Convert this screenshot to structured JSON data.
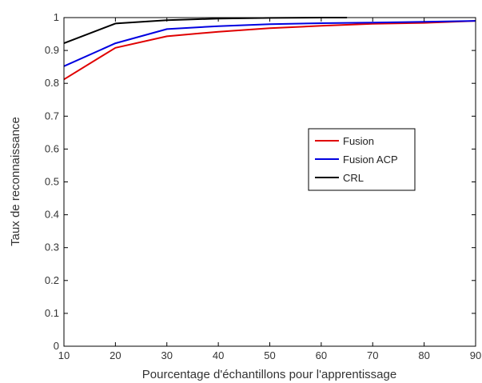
{
  "chart_data": {
    "type": "line",
    "title": "",
    "xlabel": "Pourcentage d'échantillons pour l'apprentissage",
    "ylabel": "Taux de reconnaissance",
    "xlim": [
      10,
      90
    ],
    "ylim": [
      0,
      1
    ],
    "x_ticks": [
      "10",
      "20",
      "30",
      "40",
      "50",
      "60",
      "70",
      "80",
      "90"
    ],
    "y_ticks": [
      "0",
      "0.1",
      "0.2",
      "0.3",
      "0.4",
      "0.5",
      "0.6",
      "0.7",
      "0.8",
      "0.9",
      "1"
    ],
    "grid": false,
    "legend_position": "right-middle",
    "series": [
      {
        "name": "Fusion",
        "color": "#e00000",
        "x": [
          10,
          20,
          30,
          40,
          50,
          60,
          70,
          80,
          90
        ],
        "values": [
          0.812,
          0.908,
          0.943,
          0.957,
          0.968,
          0.975,
          0.981,
          0.984,
          0.99
        ]
      },
      {
        "name": "Fusion ACP",
        "color": "#0000e0",
        "x": [
          10,
          20,
          30,
          40,
          50,
          60,
          70,
          80,
          90
        ],
        "values": [
          0.852,
          0.922,
          0.965,
          0.974,
          0.98,
          0.983,
          0.985,
          0.987,
          0.99
        ]
      },
      {
        "name": "CRL",
        "color": "#000000",
        "x": [
          10,
          20,
          30,
          40,
          50,
          60,
          65
        ],
        "values": [
          0.922,
          0.982,
          0.992,
          0.997,
          0.999,
          1.0,
          1.0
        ]
      }
    ]
  }
}
